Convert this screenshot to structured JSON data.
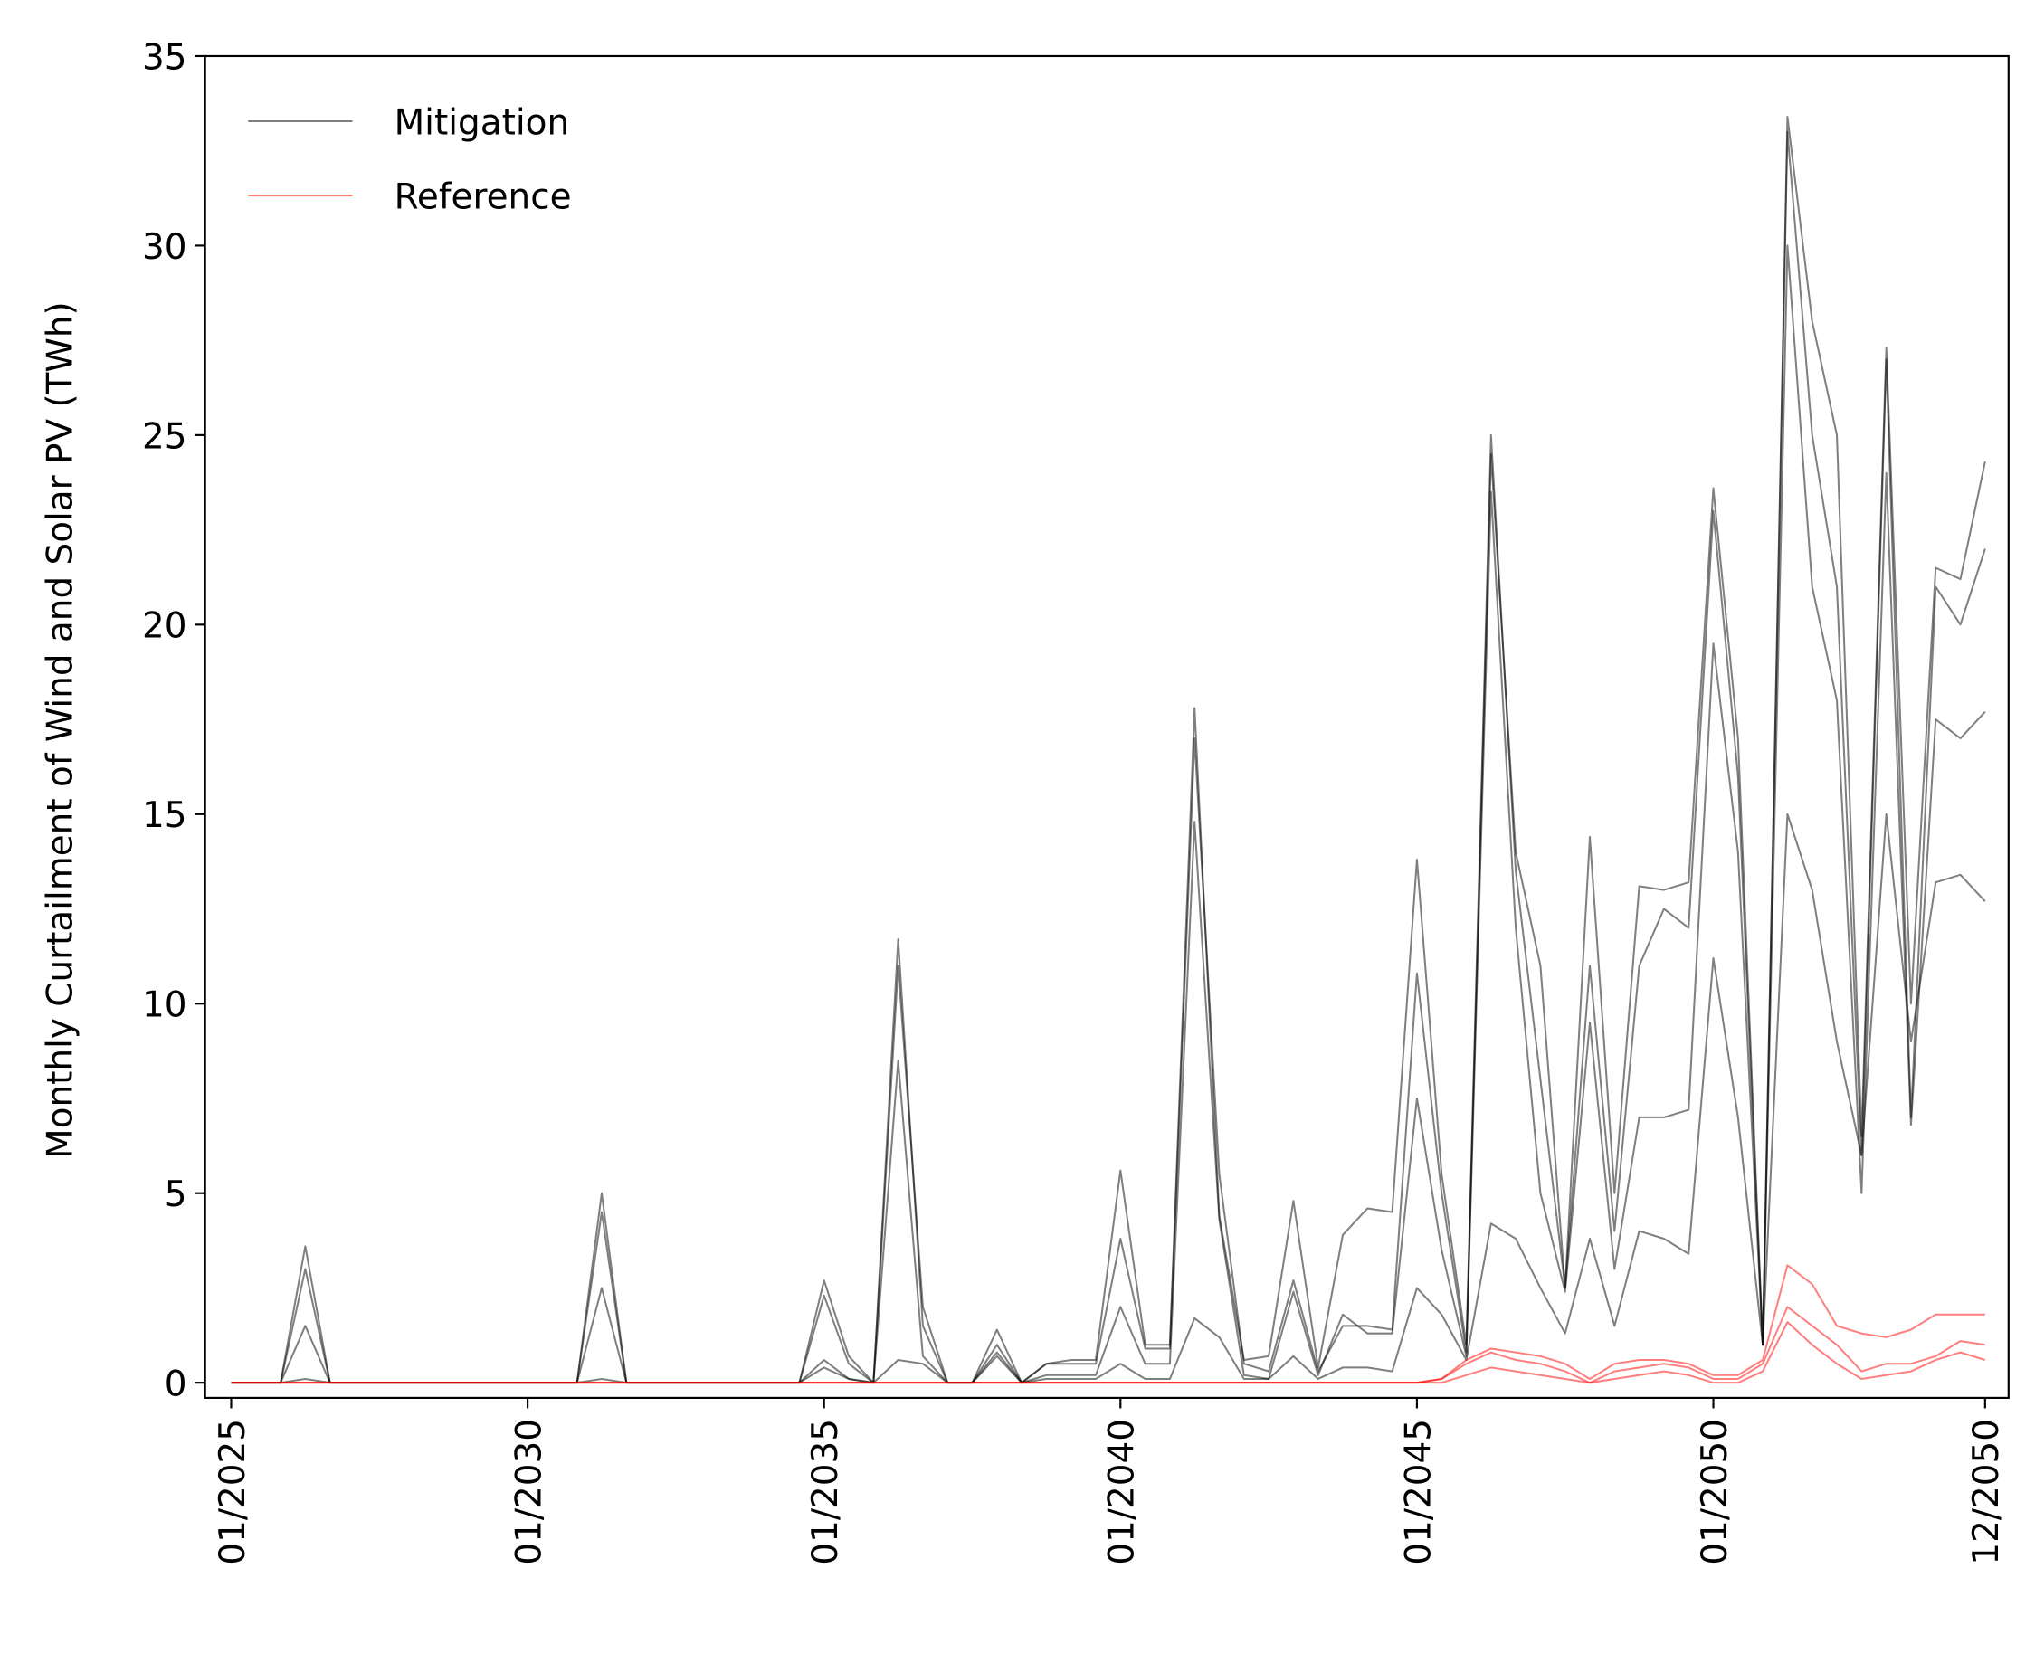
{
  "chart_data": {
    "type": "line",
    "y_label": "Monthly Curtailment of Wind and Solar PV (TWh)",
    "x": [
      "01/2025",
      null,
      null,
      null,
      null,
      null,
      null,
      null,
      null,
      null,
      null,
      null,
      "01/2030",
      null,
      null,
      null,
      null,
      null,
      null,
      null,
      null,
      null,
      null,
      null,
      "01/2035",
      null,
      null,
      null,
      null,
      null,
      null,
      null,
      null,
      null,
      null,
      null,
      "01/2040",
      null,
      null,
      null,
      null,
      null,
      null,
      null,
      null,
      null,
      null,
      null,
      "01/2045",
      null,
      null,
      null,
      null,
      null,
      null,
      null,
      null,
      null,
      null,
      null,
      "01/2050",
      null,
      null,
      null,
      null,
      null,
      null,
      null,
      null,
      null,
      null,
      "12/2050"
    ],
    "ylim": [
      -0.4,
      35
    ],
    "yticks": [
      0,
      5,
      10,
      15,
      20,
      25,
      30,
      35
    ],
    "legend": "upper-left",
    "series": [
      {
        "name": "Mitigation",
        "color": "#000000",
        "alpha": 0.5,
        "values": [
          0,
          0,
          0,
          3.0,
          0,
          0,
          0,
          0,
          0,
          0,
          0,
          0,
          0,
          0,
          0,
          4.5,
          0,
          0,
          0,
          0,
          0,
          0,
          0,
          0,
          2.3,
          0.5,
          0,
          11.0,
          2.0,
          0,
          0,
          1.0,
          0,
          0.5,
          0.5,
          0.5,
          3.8,
          0.9,
          0.9,
          17.0,
          5.5,
          0.5,
          0.3,
          2.7,
          0.3,
          1.5,
          1.5,
          1.4,
          10.8,
          5.0,
          0.8,
          24.5,
          14.0,
          11.0,
          2.5,
          11.0,
          4.0,
          11.0,
          12.5,
          12.0,
          23.0,
          16.0,
          1.0,
          33.0,
          25.0,
          21.0,
          6.0,
          27.0,
          7.0,
          21.0,
          20.0,
          22.0
        ]
      },
      {
        "name": "Mitigation",
        "color": "#000000",
        "alpha": 0.5,
        "values": [
          0,
          0,
          0,
          1.5,
          0,
          0,
          0,
          0,
          0,
          0,
          0,
          0,
          0,
          0,
          0,
          2.5,
          0,
          0,
          0,
          0,
          0,
          0,
          0,
          0,
          0.6,
          0.1,
          0,
          8.5,
          0.7,
          0,
          0,
          0.8,
          0,
          0.2,
          0.2,
          0.2,
          2.0,
          0.5,
          0.5,
          14.8,
          4.3,
          0.2,
          0.1,
          2.4,
          0.2,
          1.8,
          1.3,
          1.3,
          7.5,
          3.5,
          0.7,
          23.5,
          12.0,
          5.0,
          2.4,
          9.5,
          3.0,
          7.0,
          7.0,
          7.2,
          19.5,
          14.0,
          1.0,
          30.0,
          21.0,
          18.0,
          5.0,
          24.0,
          6.8,
          17.5,
          17.0,
          17.7
        ]
      },
      {
        "name": "Mitigation",
        "color": "#000000",
        "alpha": 0.5,
        "values": [
          0,
          0,
          0,
          3.6,
          0,
          0,
          0,
          0,
          0,
          0,
          0,
          0,
          0,
          0,
          0,
          5.0,
          0,
          0,
          0,
          0,
          0,
          0,
          0,
          0,
          2.7,
          0.7,
          0,
          11.7,
          1.5,
          0,
          0,
          1.4,
          0,
          0.5,
          0.6,
          0.6,
          5.6,
          1.0,
          1.0,
          17.8,
          4.4,
          0.6,
          0.7,
          4.8,
          0.4,
          3.9,
          4.6,
          4.5,
          13.8,
          5.5,
          1.0,
          25.0,
          13.5,
          8.0,
          2.5,
          14.4,
          5.0,
          13.1,
          13.0,
          13.2,
          23.6,
          17.0,
          1.0,
          33.4,
          28.0,
          25.0,
          6.5,
          27.3,
          10.0,
          21.5,
          21.2,
          24.3
        ]
      },
      {
        "name": "Mitigation",
        "color": "#000000",
        "alpha": 0.5,
        "values": [
          0,
          0,
          0,
          0.1,
          0,
          0,
          0,
          0,
          0,
          0,
          0,
          0,
          0,
          0,
          0,
          0.1,
          0,
          0,
          0,
          0,
          0,
          0,
          0,
          0,
          0.4,
          0.1,
          0,
          0.6,
          0.5,
          0,
          0,
          0.7,
          0,
          0.1,
          0.1,
          0.1,
          0.5,
          0.1,
          0.1,
          1.7,
          1.2,
          0.1,
          0.1,
          0.7,
          0.1,
          0.4,
          0.4,
          0.3,
          2.5,
          1.8,
          0.6,
          4.2,
          3.8,
          2.5,
          1.3,
          3.8,
          1.5,
          4.0,
          3.8,
          3.4,
          11.2,
          7.0,
          1.0,
          15.0,
          13.0,
          9.0,
          6.0,
          15.0,
          9.0,
          13.2,
          13.4,
          12.7
        ]
      },
      {
        "name": "Reference",
        "color": "#ff0000",
        "alpha": 0.5,
        "values": [
          0,
          0,
          0,
          0,
          0,
          0,
          0,
          0,
          0,
          0,
          0,
          0,
          0,
          0,
          0,
          0,
          0,
          0,
          0,
          0,
          0,
          0,
          0,
          0,
          0,
          0,
          0,
          0,
          0,
          0,
          0,
          0,
          0,
          0,
          0,
          0,
          0,
          0,
          0,
          0,
          0,
          0,
          0,
          0,
          0,
          0,
          0,
          0,
          0,
          0.1,
          0.5,
          0.8,
          0.6,
          0.5,
          0.3,
          0,
          0.3,
          0.4,
          0.5,
          0.4,
          0.1,
          0.1,
          0.5,
          2.0,
          1.5,
          1.0,
          0.3,
          0.5,
          0.5,
          0.7,
          1.1,
          1.0
        ]
      },
      {
        "name": "Reference",
        "color": "#ff0000",
        "alpha": 0.5,
        "values": [
          0,
          0,
          0,
          0,
          0,
          0,
          0,
          0,
          0,
          0,
          0,
          0,
          0,
          0,
          0,
          0,
          0,
          0,
          0,
          0,
          0,
          0,
          0,
          0,
          0,
          0,
          0,
          0,
          0,
          0,
          0,
          0,
          0,
          0,
          0,
          0,
          0,
          0,
          0,
          0,
          0,
          0,
          0,
          0,
          0,
          0,
          0,
          0,
          0,
          0.1,
          0.6,
          0.9,
          0.8,
          0.7,
          0.5,
          0.1,
          0.5,
          0.6,
          0.6,
          0.5,
          0.2,
          0.2,
          0.6,
          3.1,
          2.6,
          1.5,
          1.3,
          1.2,
          1.4,
          1.8,
          1.8,
          1.8
        ]
      },
      {
        "name": "Reference",
        "color": "#ff0000",
        "alpha": 0.5,
        "values": [
          0,
          0,
          0,
          0,
          0,
          0,
          0,
          0,
          0,
          0,
          0,
          0,
          0,
          0,
          0,
          0,
          0,
          0,
          0,
          0,
          0,
          0,
          0,
          0,
          0,
          0,
          0,
          0,
          0,
          0,
          0,
          0,
          0,
          0,
          0,
          0,
          0,
          0,
          0,
          0,
          0,
          0,
          0,
          0,
          0,
          0,
          0,
          0,
          0,
          0,
          0.2,
          0.4,
          0.3,
          0.2,
          0.1,
          0,
          0.1,
          0.2,
          0.3,
          0.2,
          0,
          0,
          0.3,
          1.6,
          1.0,
          0.5,
          0.1,
          0.2,
          0.3,
          0.6,
          0.8,
          0.6
        ]
      }
    ]
  }
}
